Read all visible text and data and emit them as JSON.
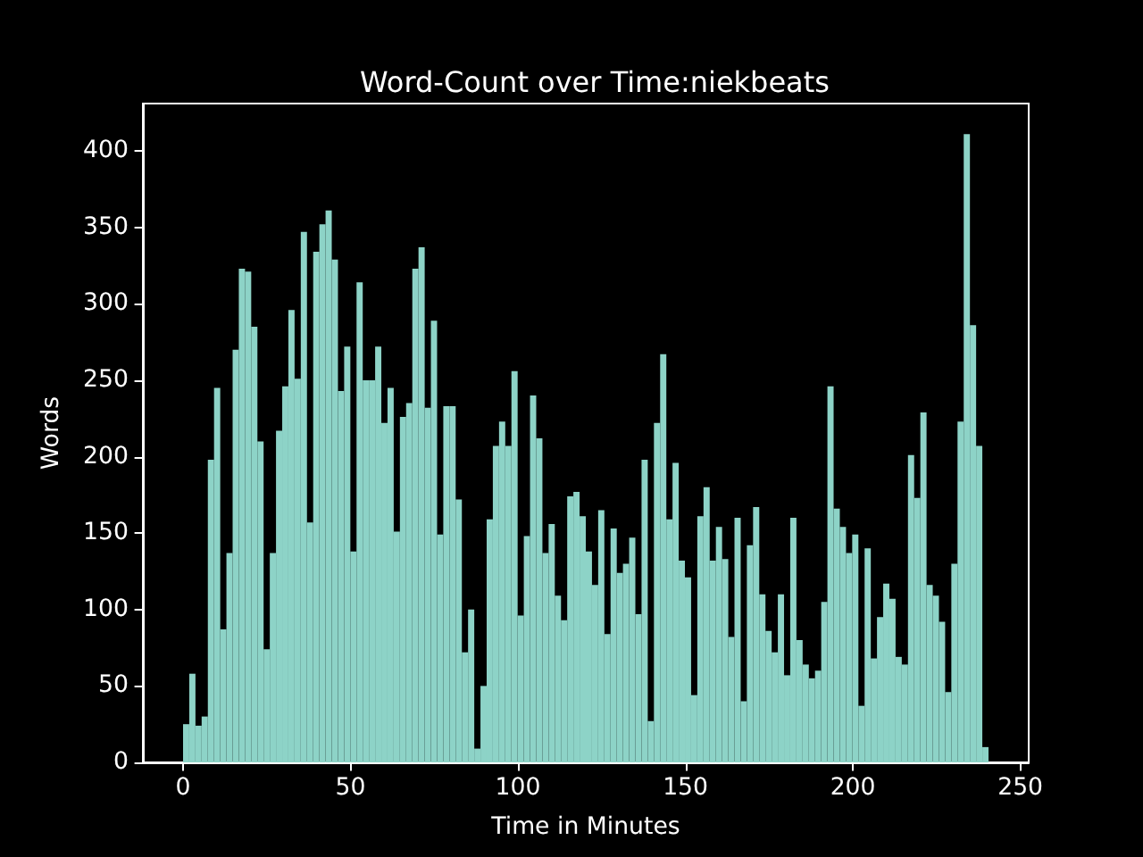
{
  "chart_data": {
    "type": "histogram",
    "title": "Word-Count over Time:niekbeats",
    "xlabel": "Time in Minutes",
    "ylabel": "Words",
    "color": "#8dd3c7",
    "bins": [
      0,
      1.85,
      3.7,
      5.55,
      7.4,
      9.25,
      11.1,
      12.95,
      14.8,
      16.65,
      18.5,
      20.35,
      22.2,
      24.05,
      25.9,
      27.75,
      29.6,
      31.45,
      33.3,
      35.15,
      37,
      38.85,
      40.7,
      42.55,
      44.4,
      46.25,
      48.1,
      49.95,
      51.8,
      53.65,
      55.5,
      57.35,
      59.2,
      61.05,
      62.9,
      64.75,
      66.6,
      68.45,
      70.3,
      72.15,
      74,
      75.85,
      77.7,
      79.55,
      81.4,
      83.25,
      85.1,
      86.95,
      88.8,
      90.65,
      92.5,
      94.35,
      96.2,
      98.05,
      99.9,
      101.75,
      103.6,
      105.45,
      107.3,
      109.15,
      111,
      112.85,
      114.7,
      116.55,
      118.4,
      120.25,
      122.1,
      123.95,
      125.8,
      127.65,
      129.5,
      131.35,
      133.2,
      135.05,
      136.9,
      138.75,
      140.6,
      142.45,
      144.3,
      146.15,
      148,
      149.85,
      151.7,
      153.55,
      155.4,
      157.25,
      159.1,
      160.95,
      162.8,
      164.65,
      166.5,
      168.35,
      170.2,
      172.05,
      173.9,
      175.75,
      177.6,
      179.45,
      181.3,
      183.15,
      185,
      186.85,
      188.7,
      190.55,
      192.4,
      194.25,
      196.1,
      197.95,
      199.8,
      201.65,
      203.5,
      205.35,
      207.2,
      209.05,
      210.9,
      212.75,
      214.6,
      216.45,
      218.3,
      220.15,
      222,
      223.85,
      225.7,
      227.55,
      229.4,
      231.25,
      233.1,
      234.95,
      236.8,
      238.65,
      240.5
    ],
    "values": [
      25,
      58,
      24,
      30,
      198,
      245,
      87,
      137,
      270,
      323,
      321,
      285,
      210,
      74,
      137,
      217,
      246,
      296,
      251,
      347,
      157,
      334,
      352,
      361,
      329,
      243,
      272,
      138,
      314,
      250,
      250,
      272,
      222,
      245,
      151,
      226,
      235,
      323,
      337,
      232,
      289,
      149,
      233,
      233,
      172,
      72,
      100,
      9,
      50,
      159,
      207,
      223,
      207,
      256,
      96,
      148,
      240,
      212,
      137,
      156,
      109,
      93,
      174,
      177,
      161,
      138,
      116,
      165,
      84,
      153,
      124,
      130,
      147,
      97,
      198,
      27,
      222,
      267,
      159,
      196,
      132,
      121,
      44,
      161,
      180,
      132,
      154,
      133,
      82,
      160,
      40,
      142,
      167,
      110,
      86,
      72,
      110,
      57,
      160,
      80,
      64,
      55,
      60,
      105,
      246,
      166,
      154,
      137,
      149,
      37,
      140,
      68,
      95,
      117,
      107,
      69,
      64,
      201,
      173,
      229,
      116,
      109,
      92,
      46,
      130,
      223,
      411,
      286,
      207,
      10
    ],
    "xlim": [
      -12,
      252.5
    ],
    "xticks": [
      0,
      50,
      100,
      150,
      200,
      250
    ],
    "ylim": [
      0,
      431
    ],
    "yticks": [
      0,
      50,
      100,
      150,
      200,
      250,
      300,
      350,
      400
    ]
  }
}
